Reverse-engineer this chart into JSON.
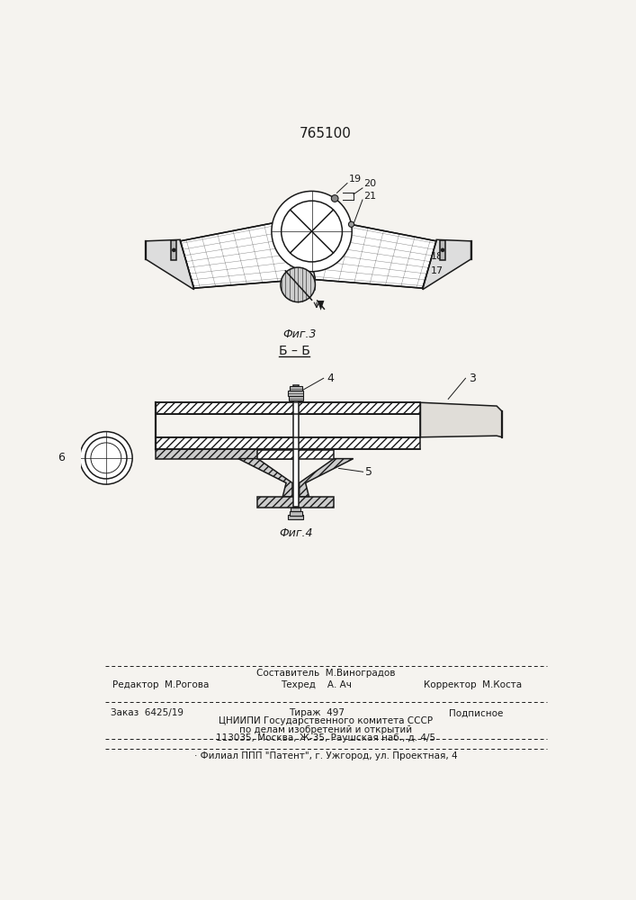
{
  "title_number": "765100",
  "bg_color": "#f5f3ef",
  "line_color": "#1a1a1a",
  "fig3_caption": "Фиг.3",
  "fig4_caption": "Фиг.4",
  "section_label": "Б – Б",
  "labels_fig3": {
    "19": "19",
    "20": "20",
    "21": "21",
    "18": "18",
    "17": "17"
  },
  "labels_fig4": {
    "4": "4",
    "3": "3",
    "5": "5",
    "6": "6"
  },
  "footer_compositor": "Составитель  М.Виноградов",
  "footer_editor": "Редактор  М.Рогова",
  "footer_tech": "Техред    А. Ач",
  "footer_corrector": "Корректор  М.Коста",
  "footer_order": "Заказ  6425/19",
  "footer_circ": "Тираж  497",
  "footer_sub": "Подписное",
  "footer_org1": "ЦНИИПИ Государственного комитета СССР",
  "footer_org2": "по делам изобретений и открытий",
  "footer_org3": "113035, Москва, Ж-35, Раушская наб., д. 4/5",
  "footer_branch": "· Филиал ППП \"Патент\", г. Ужгород, ул. Проектная, 4"
}
